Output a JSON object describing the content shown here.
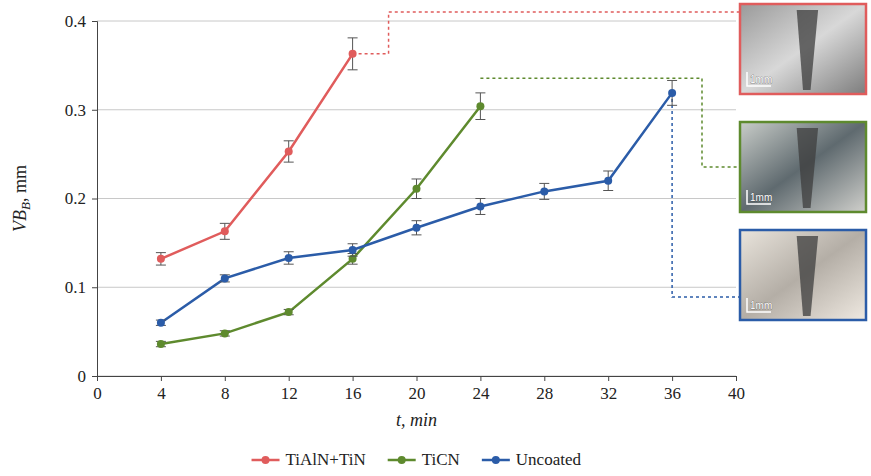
{
  "chart_data": {
    "type": "line",
    "x_label": "t, min",
    "y_label": "VB",
    "y_label_subscript": "B",
    "y_label_unit": ", mm",
    "xlim": [
      0,
      40
    ],
    "xticks": [
      0,
      4,
      8,
      12,
      16,
      20,
      24,
      28,
      32,
      36,
      40
    ],
    "ylim": [
      0,
      0.4
    ],
    "yticks": [
      0,
      0.1,
      0.2,
      0.3,
      0.4
    ],
    "grid": true,
    "legend": "bottom",
    "marker": "circle",
    "series": [
      {
        "name": "TiAlN+TiN",
        "color": "#e05c5c",
        "x": [
          4,
          8,
          12,
          16
        ],
        "values": [
          0.132,
          0.163,
          0.253,
          0.363
        ],
        "errors": [
          0.007,
          0.009,
          0.012,
          0.018
        ],
        "inset_scale_label": "1mm"
      },
      {
        "name": "TiCN",
        "color": "#5e8a2e",
        "x": [
          4,
          8,
          12,
          16,
          20,
          24
        ],
        "values": [
          0.036,
          0.048,
          0.072,
          0.132,
          0.211,
          0.304
        ],
        "errors": [
          0.003,
          0.003,
          0.003,
          0.006,
          0.011,
          0.015
        ],
        "inset_scale_label": "1mm"
      },
      {
        "name": "Uncoated",
        "color": "#2b5ca8",
        "x": [
          4,
          8,
          12,
          16,
          20,
          24,
          28,
          32,
          36
        ],
        "values": [
          0.06,
          0.11,
          0.133,
          0.142,
          0.167,
          0.191,
          0.208,
          0.22,
          0.319
        ],
        "errors": [
          0.003,
          0.004,
          0.007,
          0.007,
          0.008,
          0.009,
          0.009,
          0.011,
          0.014
        ],
        "inset_scale_label": "1mm"
      }
    ]
  }
}
